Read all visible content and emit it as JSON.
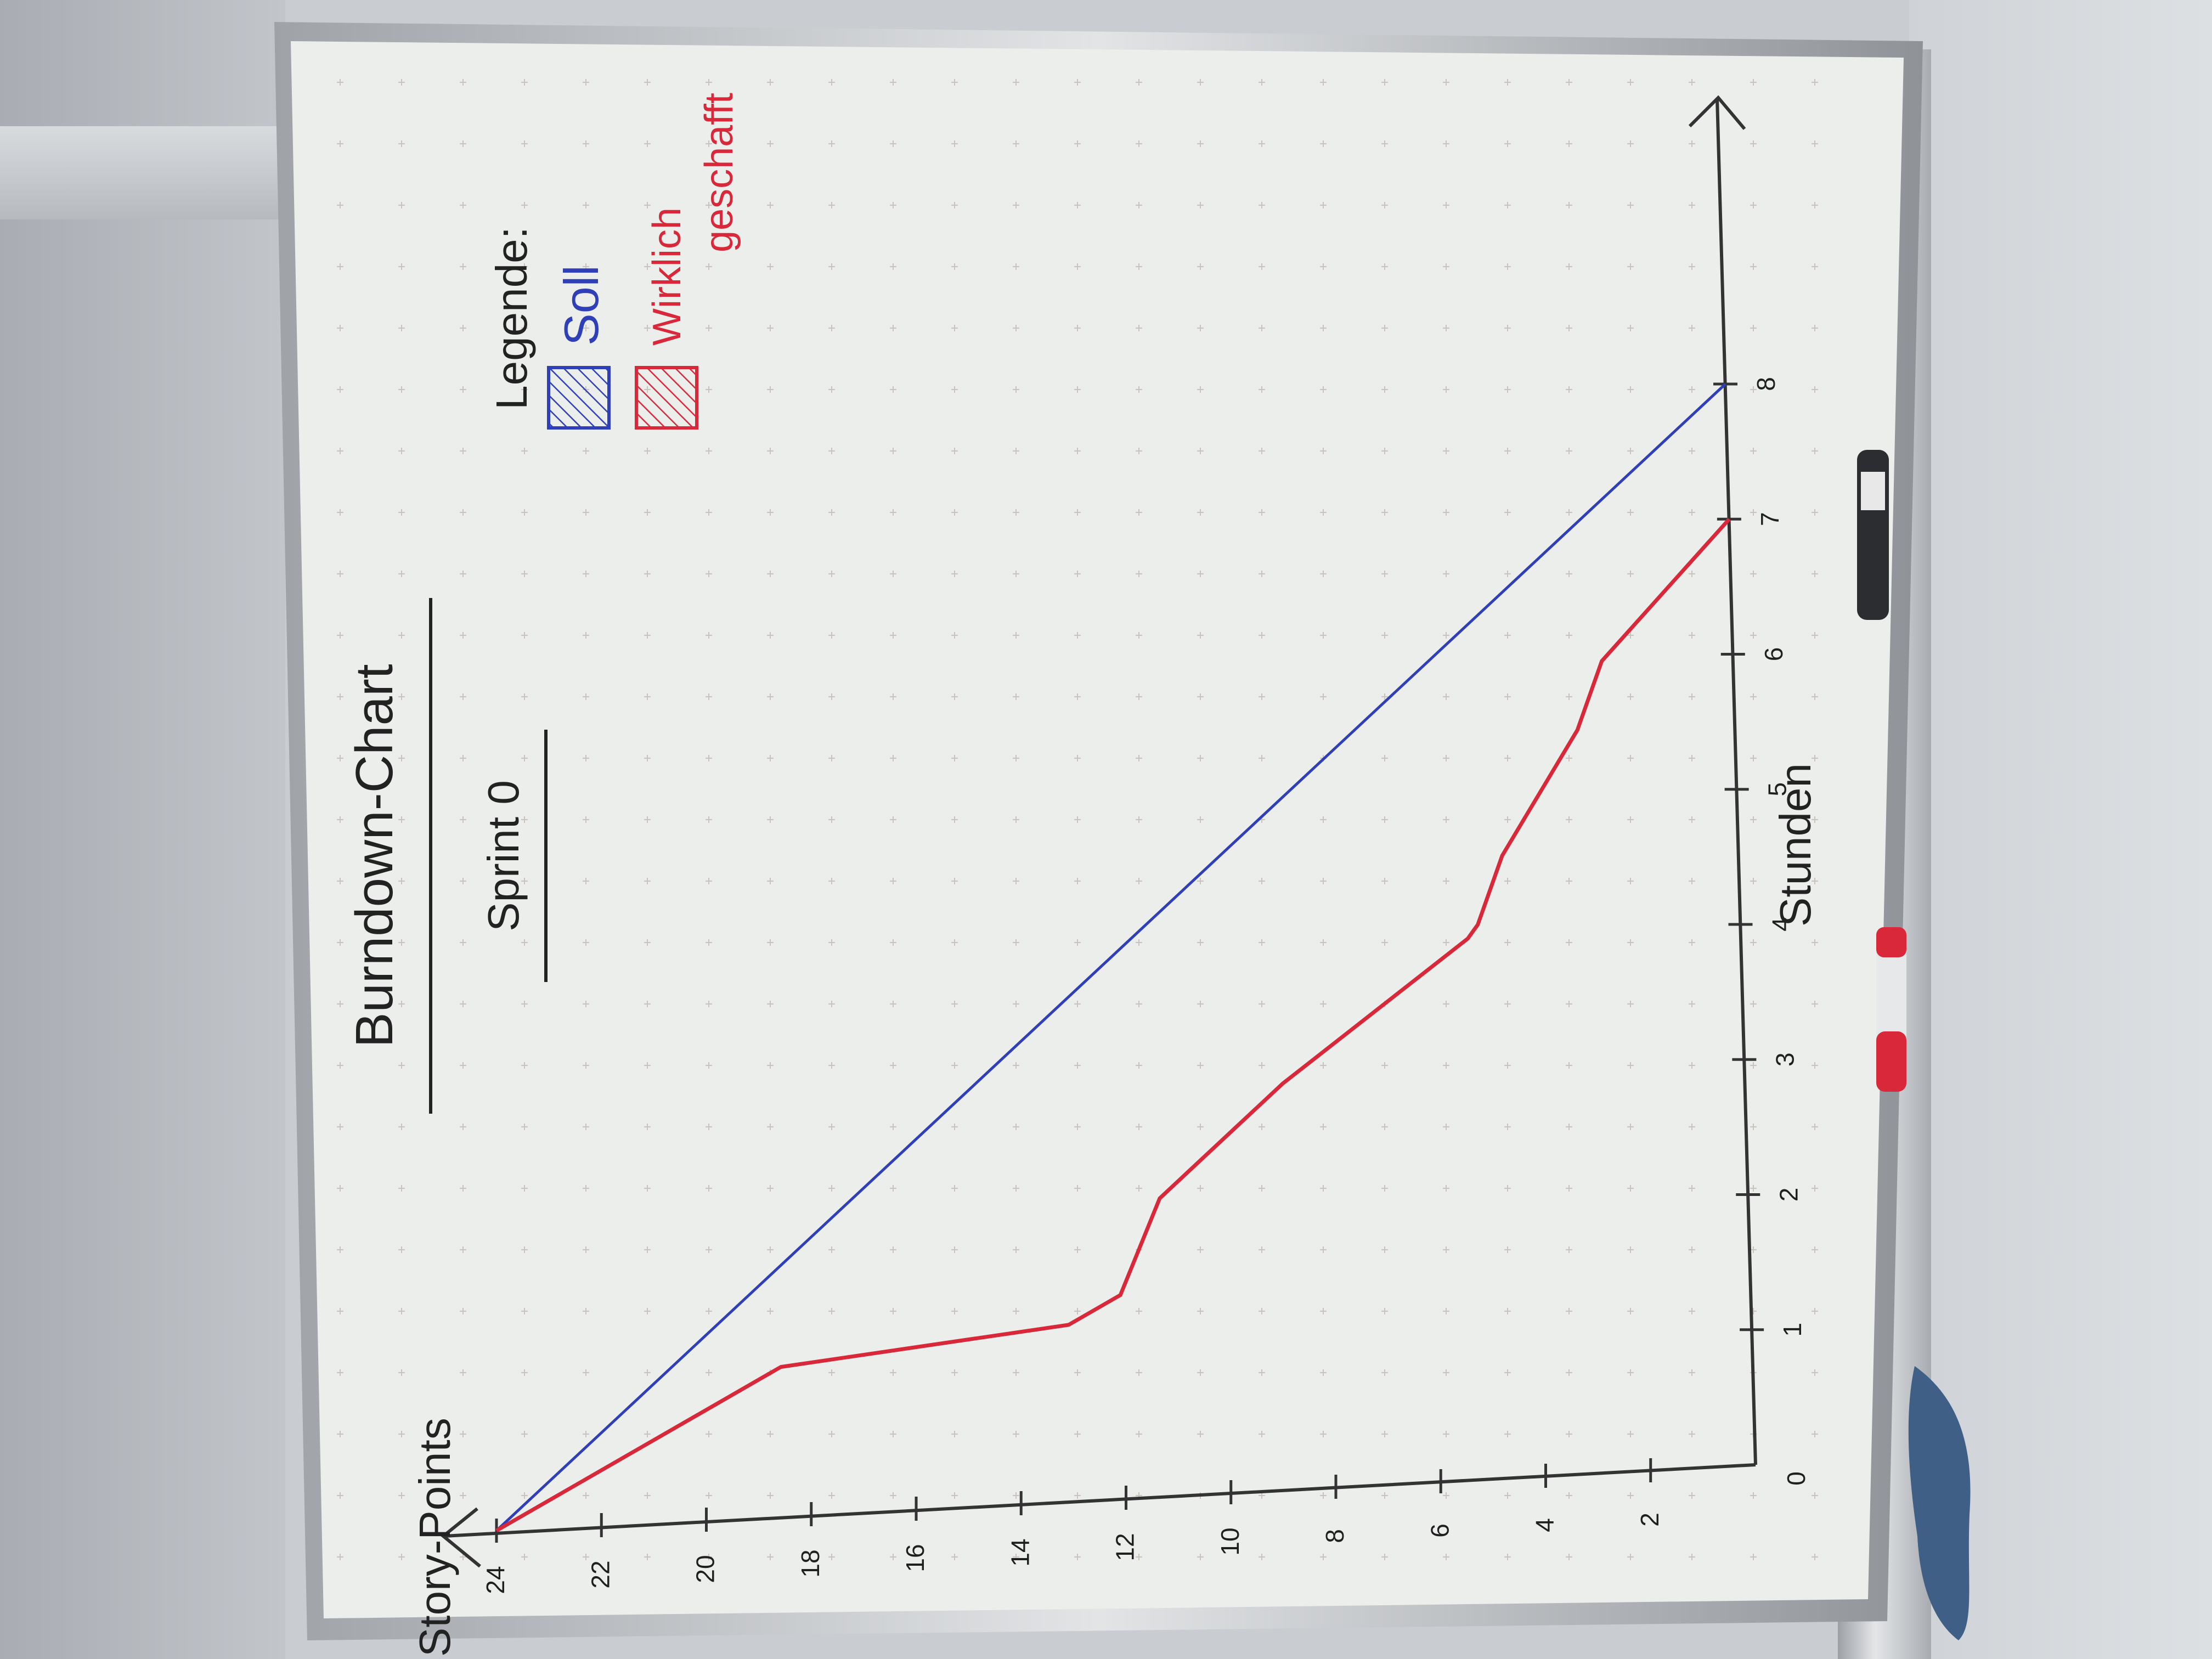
{
  "chart_data": {
    "type": "line",
    "title": "Burndown-Chart",
    "subtitle": "Sprint 0",
    "legend_title": "Legende:",
    "legend_placement": "top-right",
    "xlabel": "Stunden",
    "ylabel": "Story-Points",
    "x_ticks": [
      "0",
      "1",
      "2",
      "3",
      "4",
      "5",
      "6",
      "7",
      "8"
    ],
    "y_ticks": [
      "2",
      "4",
      "6",
      "8",
      "10",
      "12",
      "14",
      "16",
      "18",
      "20",
      "22",
      "24"
    ],
    "xlim": [
      0,
      8
    ],
    "ylim": [
      0,
      24
    ],
    "grid": true,
    "series": [
      {
        "name": "Soll",
        "color": "#2f3fb8",
        "x": [
          0,
          8
        ],
        "y": [
          24,
          0
        ]
      },
      {
        "name": "Wirklich geschafft",
        "color": "#d8283a",
        "x": [
          0,
          0.5,
          1.1,
          1.3,
          1.5,
          2.2,
          3.0,
          4.0,
          4.1,
          4.6,
          5.5,
          6.0,
          7.0
        ],
        "y": [
          24,
          21.5,
          18.5,
          13,
          12,
          11.2,
          8.8,
          5.2,
          5.0,
          4.5,
          3.0,
          2.5,
          0
        ]
      }
    ]
  }
}
